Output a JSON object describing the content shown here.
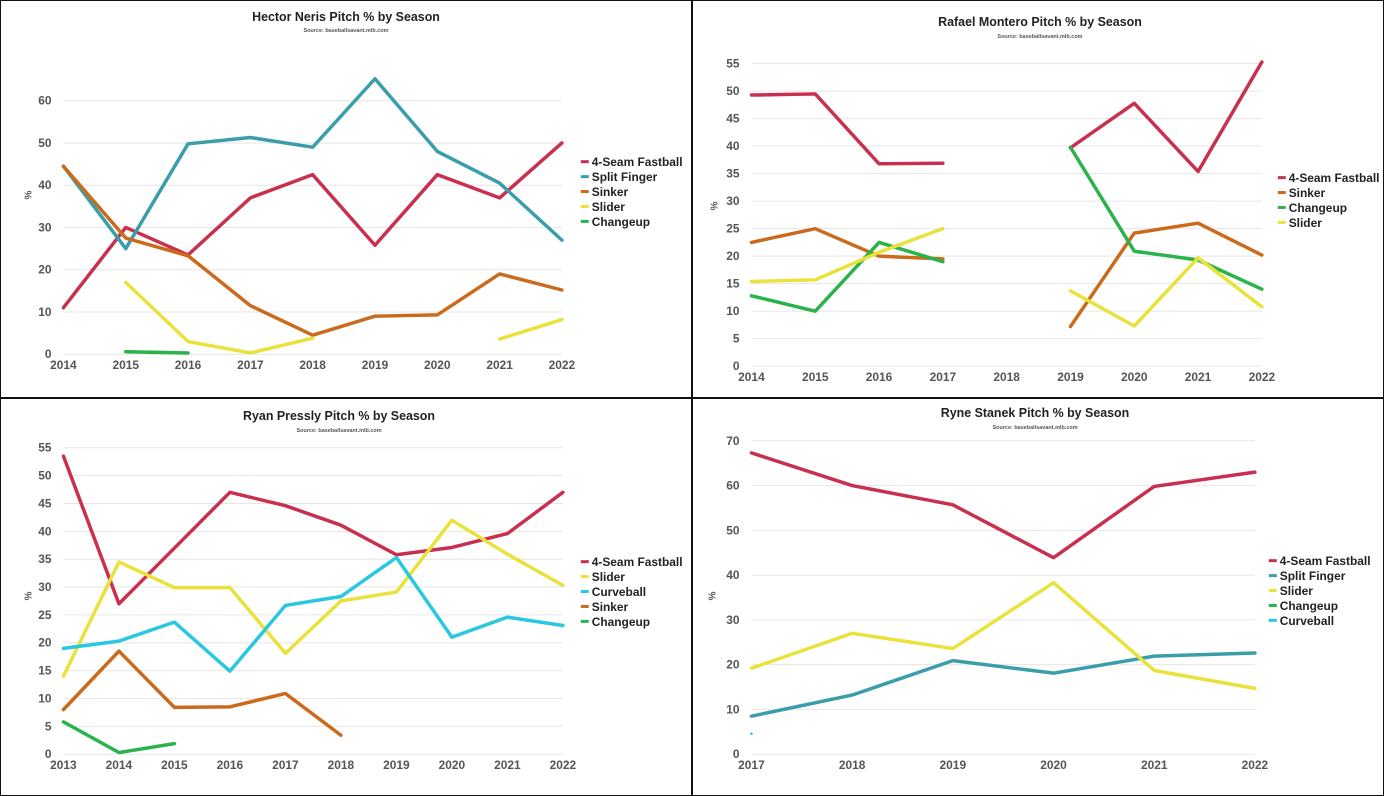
{
  "chart_data": [
    {
      "type": "line",
      "title": "Hector Neris Pitch % by Season",
      "subtitle": "Source: baseballsavant.mlb.com",
      "ylabel": "%",
      "x": [
        "2014",
        "2015",
        "2016",
        "2017",
        "2018",
        "2019",
        "2020",
        "2021",
        "2022"
      ],
      "ylim": [
        0,
        65
      ],
      "yticks": [
        0,
        10,
        20,
        30,
        40,
        50,
        60
      ],
      "legend_position": "right",
      "grid": true,
      "series": [
        {
          "name": "4-Seam Fastball",
          "color": "#c8304e",
          "values": [
            11,
            30,
            23.5,
            37,
            42.5,
            25.8,
            42.5,
            37,
            50
          ]
        },
        {
          "name": "Split Finger",
          "color": "#3a9eaa",
          "values": [
            44.5,
            25,
            49.8,
            51.3,
            49,
            65.2,
            48,
            40.5,
            27
          ]
        },
        {
          "name": "Sinker",
          "color": "#cc6a1c",
          "values": [
            44.5,
            27.5,
            23.3,
            11.5,
            4.5,
            9,
            9.3,
            19,
            15.2
          ]
        },
        {
          "name": "Slider",
          "color": "#e9e23a",
          "values": [
            null,
            17,
            3,
            0.3,
            3.8,
            null,
            null,
            3.6,
            8.2
          ]
        },
        {
          "name": "Changeup",
          "color": "#2ab34a",
          "values": [
            null,
            0.6,
            0.3,
            null,
            null,
            null,
            null,
            null,
            null
          ]
        }
      ]
    },
    {
      "type": "line",
      "title": "Rafael Montero Pitch % by Season",
      "subtitle": "Source: baseballsavant.mlb.com",
      "ylabel": "%",
      "x": [
        "2014",
        "2015",
        "2016",
        "2017",
        "2018",
        "2019",
        "2020",
        "2021",
        "2022"
      ],
      "ylim": [
        0,
        55
      ],
      "yticks": [
        0,
        5,
        10,
        15,
        20,
        25,
        30,
        35,
        40,
        45,
        50,
        55
      ],
      "legend_position": "right",
      "grid": true,
      "series": [
        {
          "name": "4-Seam Fastball",
          "color": "#c8304e",
          "values": [
            49.3,
            49.5,
            36.8,
            36.9,
            null,
            39.7,
            47.8,
            35.4,
            55.3
          ]
        },
        {
          "name": "Sinker",
          "color": "#cc6a1c",
          "values": [
            22.5,
            25,
            20,
            19.5,
            null,
            7.2,
            24.2,
            26,
            20.2
          ]
        },
        {
          "name": "Changeup",
          "color": "#2ab34a",
          "values": [
            12.8,
            10,
            22.5,
            19,
            null,
            39.8,
            20.9,
            19.3,
            14
          ]
        },
        {
          "name": "Slider",
          "color": "#e9e23a",
          "values": [
            15.4,
            15.7,
            20.7,
            25,
            null,
            13.7,
            7.3,
            19.7,
            10.8
          ]
        }
      ]
    },
    {
      "type": "line",
      "title": "Ryan Pressly Pitch % by Season",
      "subtitle": "Source: baseballsavant.mlb.com",
      "ylabel": "%",
      "x": [
        "2013",
        "2014",
        "2015",
        "2016",
        "2017",
        "2018",
        "2019",
        "2020",
        "2021",
        "2022"
      ],
      "ylim": [
        0,
        55
      ],
      "yticks": [
        0,
        5,
        10,
        15,
        20,
        25,
        30,
        35,
        40,
        45,
        50,
        55
      ],
      "legend_position": "right",
      "grid": true,
      "series": [
        {
          "name": "4-Seam Fastball",
          "color": "#c8304e",
          "values": [
            53.5,
            27,
            37,
            47,
            44.6,
            41.1,
            35.8,
            37.1,
            39.6,
            47
          ]
        },
        {
          "name": "Slider",
          "color": "#e9e23a",
          "values": [
            14,
            34.5,
            29.9,
            29.9,
            18.1,
            27.5,
            29.1,
            42,
            35.9,
            30.3
          ]
        },
        {
          "name": "Curveball",
          "color": "#27c8e0",
          "values": [
            19,
            20.3,
            23.7,
            14.9,
            26.7,
            28.3,
            35.3,
            21,
            24.6,
            23.1
          ]
        },
        {
          "name": "Sinker",
          "color": "#cc6a1c",
          "values": [
            8,
            18.5,
            8.4,
            8.5,
            10.9,
            3.4,
            null,
            null,
            null,
            null
          ]
        },
        {
          "name": "Changeup",
          "color": "#2ab34a",
          "values": [
            5.8,
            0.3,
            1.9,
            null,
            null,
            null,
            null,
            null,
            null,
            null
          ]
        }
      ]
    },
    {
      "type": "line",
      "title": "Ryne Stanek Pitch % by Season",
      "subtitle": "Source: baseballsavant.mlb.com",
      "ylabel": "%",
      "x": [
        "2017",
        "2018",
        "2019",
        "2020",
        "2021",
        "2022"
      ],
      "ylim": [
        0,
        70
      ],
      "yticks": [
        0,
        10,
        20,
        30,
        40,
        50,
        60,
        70
      ],
      "legend_position": "right",
      "grid": true,
      "series": [
        {
          "name": "4-Seam Fastball",
          "color": "#c8304e",
          "values": [
            67.3,
            60,
            55.7,
            43.9,
            59.8,
            63
          ]
        },
        {
          "name": "Split Finger",
          "color": "#3a9eaa",
          "values": [
            8.5,
            13.2,
            20.9,
            18.1,
            21.9,
            22.6
          ]
        },
        {
          "name": "Slider",
          "color": "#e9e23a",
          "values": [
            19.2,
            27,
            23.6,
            38.3,
            18.7,
            14.7
          ]
        },
        {
          "name": "Changeup",
          "color": "#2ab34a",
          "values": [
            null,
            null,
            null,
            null,
            null,
            null
          ]
        },
        {
          "name": "Curveball",
          "color": "#27c8e0",
          "values": [
            4.6,
            null,
            null,
            null,
            null,
            null
          ]
        }
      ]
    }
  ]
}
